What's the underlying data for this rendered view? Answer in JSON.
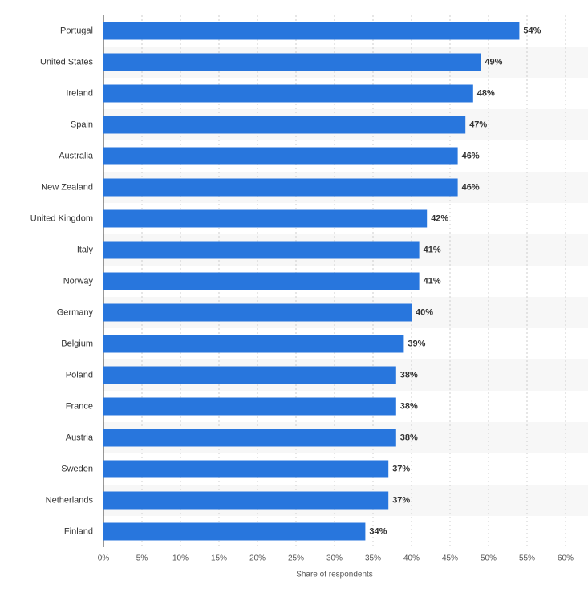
{
  "chart_data": {
    "type": "bar",
    "orientation": "horizontal",
    "x_label": "Share of respondents",
    "categories": [
      "Portugal",
      "United States",
      "Ireland",
      "Spain",
      "Australia",
      "New Zealand",
      "United Kingdom",
      "Italy",
      "Norway",
      "Germany",
      "Belgium",
      "Poland",
      "France",
      "Austria",
      "Sweden",
      "Netherlands",
      "Finland"
    ],
    "values": [
      54,
      49,
      48,
      47,
      46,
      46,
      42,
      41,
      41,
      40,
      39,
      38,
      38,
      38,
      37,
      37,
      34
    ],
    "value_labels": [
      "54%",
      "49%",
      "48%",
      "47%",
      "46%",
      "46%",
      "42%",
      "41%",
      "41%",
      "40%",
      "39%",
      "38%",
      "38%",
      "38%",
      "37%",
      "37%",
      "34%"
    ],
    "color": "#2876dd",
    "xlim": [
      0,
      60
    ],
    "xticks": [
      {
        "value": 0,
        "label": "0%"
      },
      {
        "value": 5,
        "label": "5%"
      },
      {
        "value": 10,
        "label": "10%"
      },
      {
        "value": 15,
        "label": "15%"
      },
      {
        "value": 20,
        "label": "20%"
      },
      {
        "value": 25,
        "label": "25%"
      },
      {
        "value": 30,
        "label": "30%"
      },
      {
        "value": 35,
        "label": "35%"
      },
      {
        "value": 40,
        "label": "40%"
      },
      {
        "value": 45,
        "label": "45%"
      },
      {
        "value": 50,
        "label": "50%"
      },
      {
        "value": 55,
        "label": "55%"
      },
      {
        "value": 60,
        "label": "60%"
      }
    ],
    "grid": true
  }
}
